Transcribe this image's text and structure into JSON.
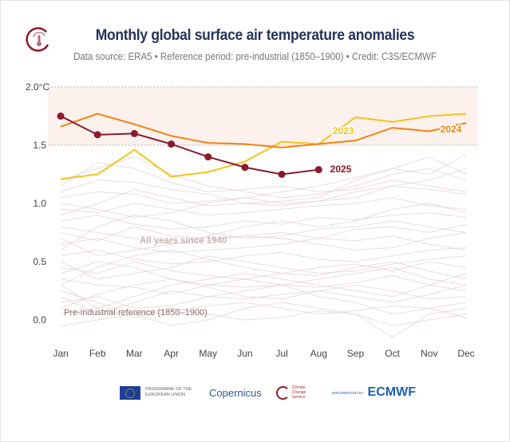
{
  "header": {
    "title": "Monthly global surface air temperature anomalies",
    "subtitle": "Data source: ERA5 • Reference period: pre-industrial (1850–1900) • Credit: C3S/ECMWF"
  },
  "footer": {
    "eu_text": "PROGRAMME OF THE EUROPEAN UNION",
    "copernicus": "Copernicus",
    "c3s_text": "Climate Change Service",
    "implemented_by": "IMPLEMENTED BY",
    "ecmwf": "ECMWF"
  },
  "colors": {
    "y2025": "#8b1a2b",
    "y2024": "#f5820d",
    "y2023": "#f8c21a",
    "background_years": "#e6d6d3",
    "band": "#fdf1ee"
  },
  "chart_data": {
    "type": "line",
    "title": "Monthly global surface air temperature anomalies",
    "categories": [
      "Jan",
      "Feb",
      "Mar",
      "Apr",
      "May",
      "Jun",
      "Jul",
      "Aug",
      "Sep",
      "Oct",
      "Nov",
      "Dec"
    ],
    "ylim": [
      -0.2,
      2.0
    ],
    "yticks": [
      "2.0°C",
      "1.5",
      "1.0",
      "0.5",
      "0.0"
    ],
    "ytick_values": [
      2.0,
      1.5,
      1.0,
      0.5,
      0.0
    ],
    "grid": "dashed lines at 1.5 and 2.0",
    "shaded_band": [
      1.5,
      2.0
    ],
    "annotations": {
      "background": "All years since 1940",
      "reference": "Pre-industrial reference (1850–1900)"
    },
    "series": [
      {
        "name": "2023",
        "values": [
          1.21,
          1.25,
          1.46,
          1.23,
          1.27,
          1.36,
          1.53,
          1.51,
          1.74,
          1.7,
          1.75,
          1.77
        ]
      },
      {
        "name": "2024",
        "values": [
          1.66,
          1.77,
          1.68,
          1.58,
          1.52,
          1.51,
          1.48,
          1.51,
          1.54,
          1.65,
          1.62,
          1.69
        ]
      },
      {
        "name": "2025",
        "values": [
          1.75,
          1.59,
          1.6,
          1.51,
          1.4,
          1.31,
          1.25,
          1.29,
          null,
          null,
          null,
          null
        ]
      }
    ],
    "background_series": [
      [
        0.05,
        0.1,
        0.02,
        0.08,
        0.12,
        0.15,
        0.1,
        0.05,
        0.08,
        0.12,
        0.1,
        0.02
      ],
      [
        0.2,
        0.05,
        0.15,
        0.25,
        0.2,
        0.18,
        0.22,
        0.25,
        0.3,
        0.25,
        0.18,
        0.2
      ],
      [
        0.35,
        0.3,
        0.28,
        0.22,
        0.3,
        0.35,
        0.3,
        0.28,
        0.32,
        0.38,
        0.3,
        0.25
      ],
      [
        0.1,
        0.22,
        0.3,
        0.35,
        0.28,
        0.2,
        0.18,
        0.25,
        0.2,
        0.15,
        0.22,
        0.3
      ],
      [
        0.45,
        0.4,
        0.5,
        0.42,
        0.38,
        0.35,
        0.4,
        0.45,
        0.48,
        0.42,
        0.5,
        0.45
      ],
      [
        0.55,
        0.6,
        0.52,
        0.48,
        0.5,
        0.55,
        0.58,
        0.52,
        0.5,
        0.55,
        0.6,
        0.62
      ],
      [
        0.3,
        0.45,
        0.55,
        0.6,
        0.52,
        0.45,
        0.4,
        0.38,
        0.45,
        0.5,
        0.42,
        0.35
      ],
      [
        0.65,
        0.7,
        0.62,
        0.58,
        0.6,
        0.62,
        0.65,
        0.7,
        0.68,
        0.72,
        0.65,
        0.6
      ],
      [
        0.75,
        0.68,
        0.8,
        0.72,
        0.7,
        0.72,
        0.75,
        0.7,
        0.78,
        0.8,
        0.75,
        0.82
      ],
      [
        0.85,
        0.9,
        0.82,
        0.78,
        0.8,
        0.85,
        0.82,
        0.88,
        0.86,
        0.9,
        0.92,
        0.88
      ],
      [
        0.6,
        0.8,
        0.9,
        0.85,
        0.75,
        0.7,
        0.72,
        0.78,
        0.8,
        0.85,
        0.8,
        0.75
      ],
      [
        0.95,
        0.92,
        1.0,
        0.95,
        0.9,
        0.92,
        0.95,
        0.98,
        1.0,
        1.05,
        0.98,
        0.95
      ],
      [
        1.05,
        1.1,
        1.08,
        1.0,
        1.02,
        1.05,
        1.0,
        1.02,
        1.1,
        1.15,
        1.12,
        1.08
      ],
      [
        1.15,
        1.35,
        1.3,
        1.18,
        1.1,
        1.12,
        1.15,
        1.1,
        1.12,
        1.2,
        1.15,
        1.1
      ],
      [
        1.2,
        1.3,
        1.4,
        1.25,
        1.15,
        1.1,
        1.05,
        1.08,
        1.15,
        1.25,
        1.3,
        1.2
      ],
      [
        0.9,
        1.0,
        1.12,
        1.05,
        0.98,
        1.0,
        1.02,
        1.05,
        1.2,
        1.3,
        1.4,
        1.25
      ],
      [
        1.0,
        0.95,
        0.88,
        0.92,
        1.0,
        1.05,
        1.1,
        1.15,
        1.22,
        1.3,
        1.25,
        1.42
      ],
      [
        0.5,
        0.35,
        0.4,
        0.45,
        0.55,
        0.5,
        0.45,
        0.4,
        0.42,
        0.48,
        0.52,
        0.55
      ],
      [
        0.15,
        0.2,
        0.1,
        0.12,
        0.2,
        0.25,
        0.3,
        0.2,
        0.15,
        0.05,
        0.1,
        0.15
      ],
      [
        -0.05,
        0.0,
        0.05,
        0.1,
        0.05,
        0.0,
        0.02,
        0.08,
        0.05,
        -0.05,
        0.0,
        0.05
      ],
      [
        0.25,
        0.15,
        0.05,
        -0.05,
        0.0,
        0.1,
        0.15,
        0.1,
        0.05,
        -0.15,
        0.05,
        0.1
      ],
      [
        0.4,
        0.5,
        0.45,
        0.35,
        0.3,
        0.28,
        0.3,
        0.35,
        0.4,
        0.45,
        0.35,
        0.3
      ],
      [
        0.7,
        0.55,
        0.6,
        0.65,
        0.68,
        0.72,
        0.7,
        0.65,
        0.6,
        0.62,
        0.7,
        0.75
      ],
      [
        0.8,
        0.75,
        0.7,
        0.65,
        0.72,
        0.8,
        0.85,
        0.8,
        0.85,
        0.95,
        1.0,
        0.92
      ],
      [
        1.1,
        1.2,
        1.18,
        1.12,
        1.08,
        1.0,
        0.98,
        1.02,
        1.05,
        1.15,
        1.2,
        1.3
      ],
      [
        0.3,
        0.1,
        0.2,
        0.3,
        0.35,
        0.4,
        0.35,
        0.3,
        0.25,
        0.2,
        0.3,
        0.4
      ]
    ]
  }
}
